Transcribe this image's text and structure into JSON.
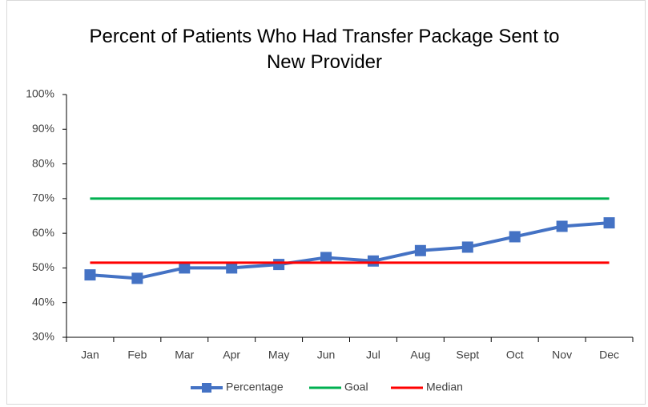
{
  "chart_data": {
    "type": "line",
    "title": "Percent of Patients Who Had Transfer Package Sent to New Provider",
    "categories": [
      "Jan",
      "Feb",
      "Mar",
      "Apr",
      "May",
      "Jun",
      "Jul",
      "Aug",
      "Sept",
      "Oct",
      "Nov",
      "Dec"
    ],
    "series": [
      {
        "name": "Percentage",
        "color": "#4472c4",
        "marker": "square",
        "values": [
          48,
          47,
          50,
          50,
          51,
          53,
          52,
          55,
          56,
          59,
          62,
          63
        ]
      },
      {
        "name": "Goal",
        "color": "#00b050",
        "values": [
          70,
          70,
          70,
          70,
          70,
          70,
          70,
          70,
          70,
          70,
          70,
          70
        ]
      },
      {
        "name": "Median",
        "color": "#ff0000",
        "values": [
          51.5,
          51.5,
          51.5,
          51.5,
          51.5,
          51.5,
          51.5,
          51.5,
          51.5,
          51.5,
          51.5,
          51.5
        ]
      }
    ],
    "ylim": [
      30,
      100
    ],
    "yticks": [
      {
        "value": 30,
        "label": "30%"
      },
      {
        "value": 40,
        "label": "40%"
      },
      {
        "value": 50,
        "label": "50%"
      },
      {
        "value": 60,
        "label": "60%"
      },
      {
        "value": 70,
        "label": "70%"
      },
      {
        "value": 80,
        "label": "80%"
      },
      {
        "value": 90,
        "label": "90%"
      },
      {
        "value": 100,
        "label": "100%"
      }
    ],
    "grid": false,
    "legend": "bottom"
  }
}
